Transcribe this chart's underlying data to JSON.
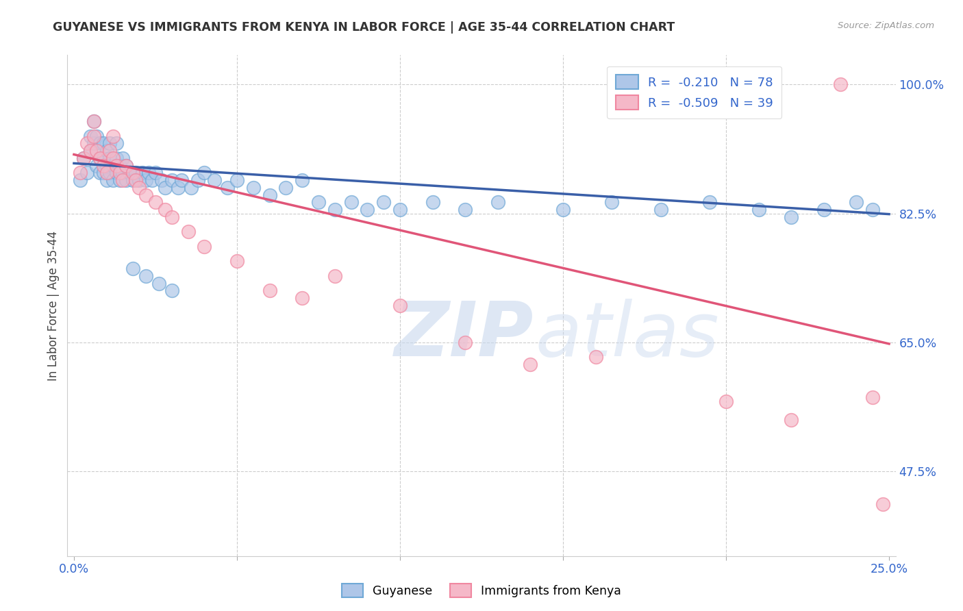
{
  "title": "GUYANESE VS IMMIGRANTS FROM KENYA IN LABOR FORCE | AGE 35-44 CORRELATION CHART",
  "source": "Source: ZipAtlas.com",
  "ylabel": "In Labor Force | Age 35-44",
  "xlim": [
    -0.002,
    0.252
  ],
  "ylim": [
    0.36,
    1.04
  ],
  "xtick_positions": [
    0.0,
    0.05,
    0.1,
    0.15,
    0.2,
    0.25
  ],
  "xticklabels": [
    "0.0%",
    "",
    "",
    "",
    "",
    "25.0%"
  ],
  "ytick_positions": [
    0.475,
    0.65,
    0.825,
    1.0
  ],
  "ytick_labels": [
    "47.5%",
    "65.0%",
    "82.5%",
    "100.0%"
  ],
  "blue_R": -0.21,
  "blue_N": 78,
  "pink_R": -0.509,
  "pink_N": 39,
  "blue_color": "#aec6e8",
  "pink_color": "#f5b8c8",
  "blue_edge_color": "#6fa8d6",
  "pink_edge_color": "#f087a0",
  "blue_line_color": "#3a5fa8",
  "pink_line_color": "#e05578",
  "blue_line_x0": 0.0,
  "blue_line_y0": 0.893,
  "blue_line_x1": 0.25,
  "blue_line_y1": 0.824,
  "pink_line_x0": 0.0,
  "pink_line_y0": 0.905,
  "pink_line_x1": 0.25,
  "pink_line_y1": 0.648,
  "blue_scatter_x": [
    0.002,
    0.003,
    0.004,
    0.005,
    0.005,
    0.006,
    0.006,
    0.007,
    0.007,
    0.008,
    0.008,
    0.008,
    0.009,
    0.009,
    0.009,
    0.01,
    0.01,
    0.01,
    0.011,
    0.011,
    0.011,
    0.012,
    0.012,
    0.013,
    0.013,
    0.013,
    0.014,
    0.014,
    0.015,
    0.015,
    0.016,
    0.016,
    0.017,
    0.018,
    0.019,
    0.02,
    0.021,
    0.022,
    0.023,
    0.024,
    0.025,
    0.027,
    0.028,
    0.03,
    0.032,
    0.033,
    0.036,
    0.038,
    0.04,
    0.043,
    0.047,
    0.05,
    0.055,
    0.06,
    0.065,
    0.07,
    0.075,
    0.08,
    0.085,
    0.09,
    0.095,
    0.1,
    0.11,
    0.12,
    0.13,
    0.15,
    0.165,
    0.18,
    0.195,
    0.21,
    0.22,
    0.23,
    0.24,
    0.245,
    0.018,
    0.022,
    0.026,
    0.03
  ],
  "blue_scatter_y": [
    0.87,
    0.9,
    0.88,
    0.91,
    0.93,
    0.95,
    0.92,
    0.89,
    0.93,
    0.88,
    0.9,
    0.92,
    0.88,
    0.9,
    0.92,
    0.87,
    0.89,
    0.91,
    0.88,
    0.9,
    0.92,
    0.87,
    0.89,
    0.88,
    0.9,
    0.92,
    0.87,
    0.89,
    0.88,
    0.9,
    0.87,
    0.89,
    0.88,
    0.87,
    0.88,
    0.87,
    0.88,
    0.87,
    0.88,
    0.87,
    0.88,
    0.87,
    0.86,
    0.87,
    0.86,
    0.87,
    0.86,
    0.87,
    0.88,
    0.87,
    0.86,
    0.87,
    0.86,
    0.85,
    0.86,
    0.87,
    0.84,
    0.83,
    0.84,
    0.83,
    0.84,
    0.83,
    0.84,
    0.83,
    0.84,
    0.83,
    0.84,
    0.83,
    0.84,
    0.83,
    0.82,
    0.83,
    0.84,
    0.83,
    0.75,
    0.74,
    0.73,
    0.72
  ],
  "pink_scatter_x": [
    0.002,
    0.003,
    0.004,
    0.005,
    0.006,
    0.006,
    0.007,
    0.008,
    0.009,
    0.01,
    0.011,
    0.012,
    0.012,
    0.013,
    0.014,
    0.015,
    0.016,
    0.018,
    0.019,
    0.02,
    0.022,
    0.025,
    0.028,
    0.03,
    0.035,
    0.04,
    0.05,
    0.06,
    0.07,
    0.08,
    0.1,
    0.12,
    0.14,
    0.16,
    0.2,
    0.22,
    0.235,
    0.245,
    0.248
  ],
  "pink_scatter_y": [
    0.88,
    0.9,
    0.92,
    0.91,
    0.93,
    0.95,
    0.91,
    0.9,
    0.89,
    0.88,
    0.91,
    0.9,
    0.93,
    0.89,
    0.88,
    0.87,
    0.89,
    0.88,
    0.87,
    0.86,
    0.85,
    0.84,
    0.83,
    0.82,
    0.8,
    0.78,
    0.76,
    0.72,
    0.71,
    0.74,
    0.7,
    0.65,
    0.62,
    0.63,
    0.57,
    0.545,
    1.0,
    0.575,
    0.43
  ]
}
